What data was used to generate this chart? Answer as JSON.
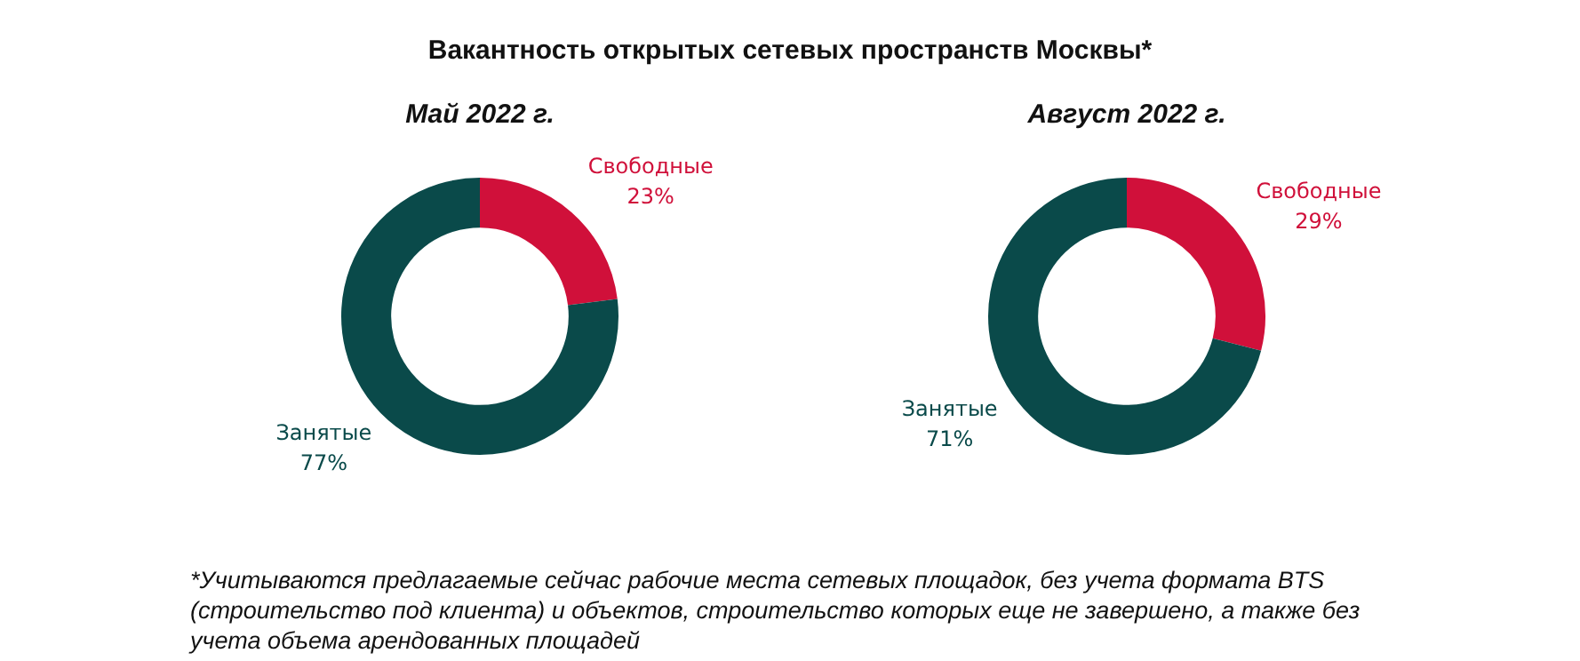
{
  "chart_data": [
    {
      "type": "donut",
      "title": "Вакантность открытых сетевых пространств Москвы*",
      "subtitle": "Май 2022 г.",
      "categories": [
        "Свободные",
        "Занятые"
      ],
      "values": [
        23,
        77
      ],
      "colors": [
        "#d0103a",
        "#0a4a4a"
      ],
      "value_labels": [
        "23%",
        "77%"
      ],
      "legend": false,
      "annotations": [
        "*Учитываются предлагаемые сейчас рабочие места сетевых площадок, без учета формата BTS (строительство под клиента) и объектов, строительство которых еще не завершено, а также без учета объема арендованных площадей"
      ]
    },
    {
      "type": "donut",
      "subtitle": "Август 2022 г.",
      "categories": [
        "Свободные",
        "Занятые"
      ],
      "values": [
        29,
        71
      ],
      "colors": [
        "#d0103a",
        "#0a4a4a"
      ],
      "value_labels": [
        "29%",
        "71%"
      ],
      "legend": false
    }
  ]
}
